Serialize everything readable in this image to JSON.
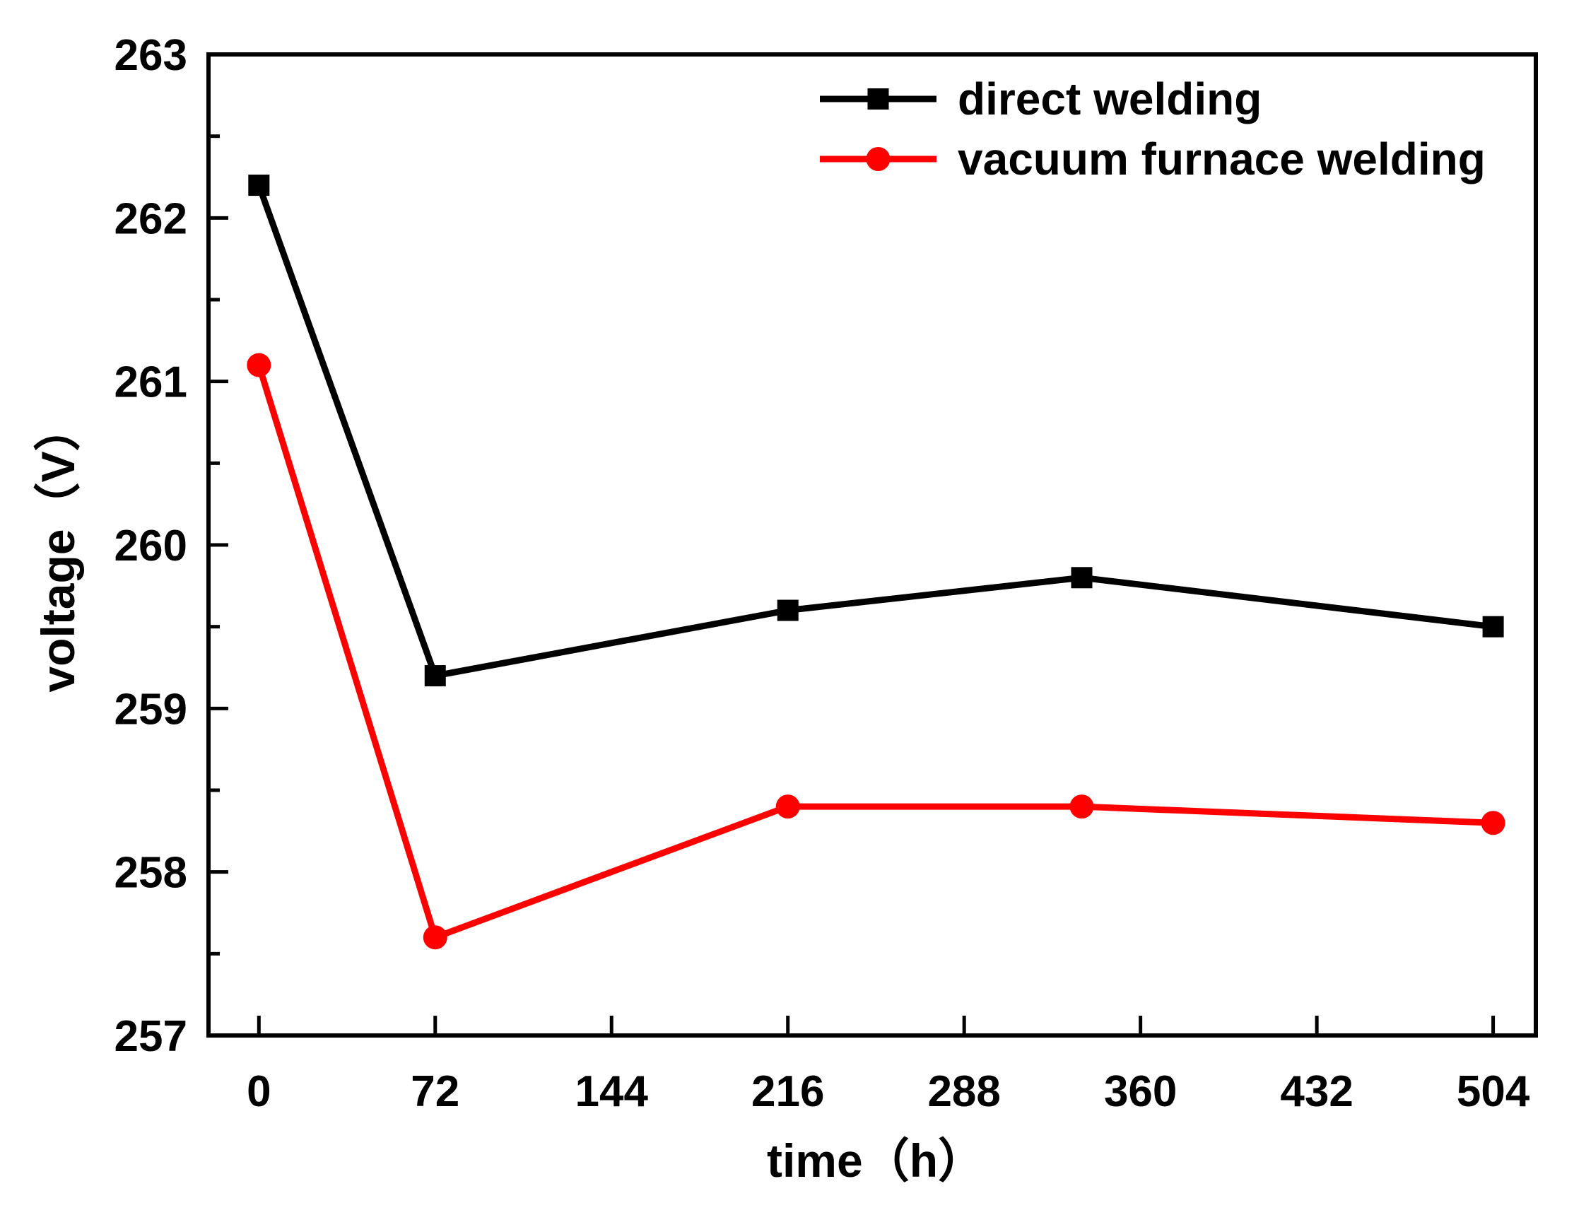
{
  "chart_data": {
    "type": "line",
    "title": "",
    "xlabel": "time（h）",
    "ylabel": "voltage（V）",
    "xlim": [
      -20.58,
      521.43
    ],
    "ylim": [
      257,
      263
    ],
    "x_ticks": [
      0,
      72,
      144,
      216,
      288,
      360,
      432,
      504
    ],
    "x_tick_labels": [
      "0",
      "72",
      "144",
      "216",
      "288",
      "360",
      "432",
      "504"
    ],
    "y_ticks": [
      257,
      258,
      259,
      260,
      261,
      262,
      263
    ],
    "y_tick_labels": [
      "257",
      "258",
      "259",
      "260",
      "261",
      "262",
      "263"
    ],
    "legend_position": "top-right",
    "series": [
      {
        "name": "direct welding",
        "color": "#000000",
        "marker": "square",
        "x": [
          0,
          72,
          216,
          336,
          504
        ],
        "y": [
          262.2,
          259.2,
          259.6,
          259.8,
          259.5
        ]
      },
      {
        "name": "vacuum furnace welding",
        "color": "#ff0000",
        "marker": "circle",
        "x": [
          0,
          72,
          216,
          336,
          504
        ],
        "y": [
          261.1,
          257.6,
          258.4,
          258.4,
          258.3
        ]
      }
    ]
  }
}
